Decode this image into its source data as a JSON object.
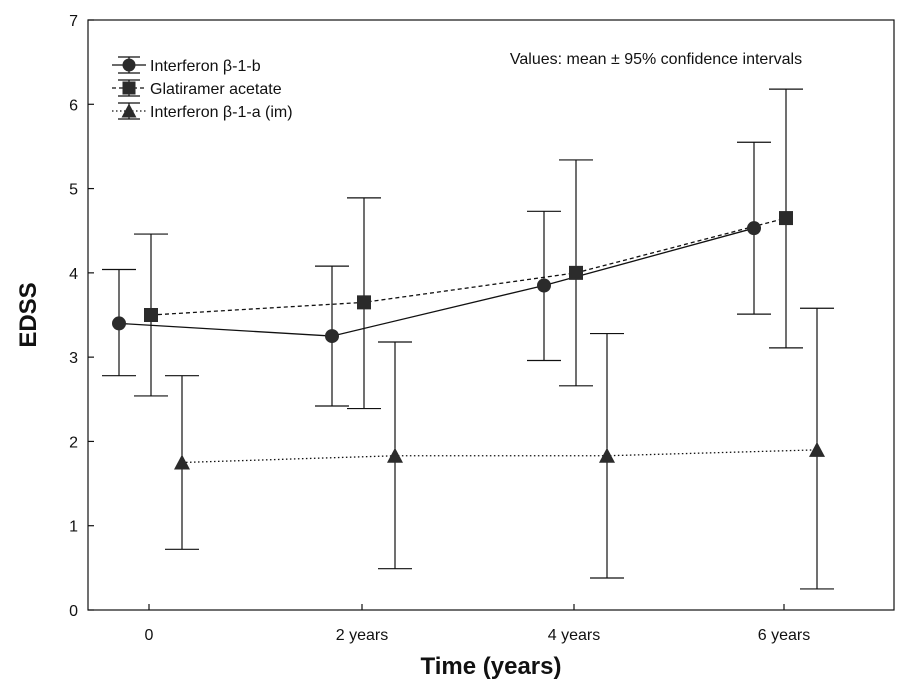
{
  "chart_data": {
    "type": "line",
    "xlabel": "Time (years)",
    "ylabel": "EDSS",
    "ylim": [
      0,
      7
    ],
    "yticks": [
      "0",
      "1",
      "2",
      "3",
      "4",
      "5",
      "6",
      "7"
    ],
    "categories": [
      "0",
      "2 years",
      "4 years",
      "6 years"
    ],
    "grid": false,
    "legend_position": "top-left",
    "annotation": "Values: mean ± 95% confidence intervals",
    "series": [
      {
        "name": "Interferon β-1-b",
        "marker": "circle",
        "line_style": "solid",
        "values": [
          3.4,
          3.25,
          3.85,
          4.53
        ],
        "ci_low": [
          2.78,
          2.42,
          2.96,
          3.51
        ],
        "ci_high": [
          4.04,
          4.08,
          4.73,
          5.55
        ]
      },
      {
        "name": "Glatiramer acetate",
        "marker": "square",
        "line_style": "dashed",
        "values": [
          3.5,
          3.65,
          4.0,
          4.65
        ],
        "ci_low": [
          2.54,
          2.39,
          2.66,
          3.11
        ],
        "ci_high": [
          4.46,
          4.89,
          5.34,
          6.18
        ]
      },
      {
        "name": "Interferon β-1-a (im)",
        "marker": "triangle",
        "line_style": "dotted",
        "values": [
          1.75,
          1.83,
          1.83,
          1.9
        ],
        "ci_low": [
          0.72,
          0.49,
          0.38,
          0.25
        ],
        "ci_high": [
          2.78,
          3.18,
          3.28,
          3.58
        ]
      }
    ]
  },
  "colors": {
    "ink": "#111111",
    "marker": "#2b2b2b",
    "background": "#ffffff"
  }
}
